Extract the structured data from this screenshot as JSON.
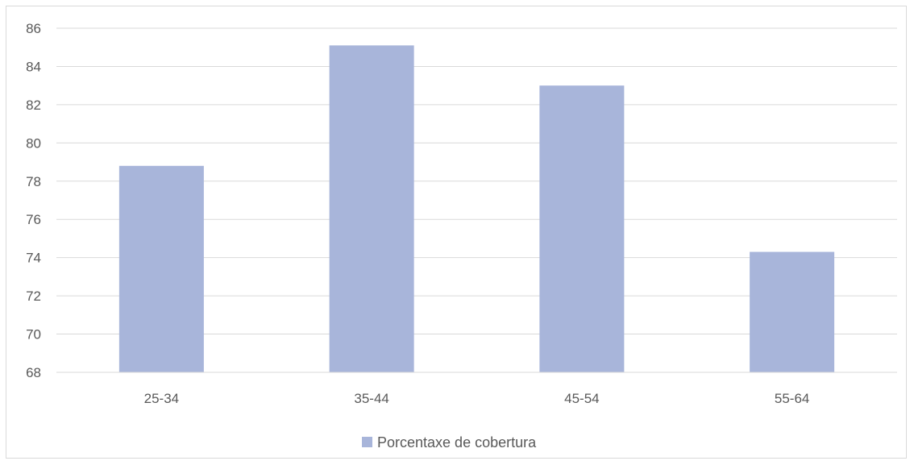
{
  "chart_data": {
    "type": "bar",
    "title": "",
    "xlabel": "",
    "ylabel": "",
    "categories": [
      "25-34",
      "35-44",
      "45-54",
      "55-64"
    ],
    "series": [
      {
        "name": "Porcentaxe de cobertura",
        "values": [
          78.8,
          85.1,
          83.0,
          74.3
        ],
        "color": "#a8b5da"
      }
    ],
    "ylim": [
      68,
      86
    ],
    "yticks": [
      68,
      70,
      72,
      74,
      76,
      78,
      80,
      82,
      84,
      86
    ],
    "grid": true,
    "legend_position": "bottom",
    "grid_color": "#d9d9d9",
    "axis_color": "#d9d9d9",
    "text_color": "#595959"
  }
}
